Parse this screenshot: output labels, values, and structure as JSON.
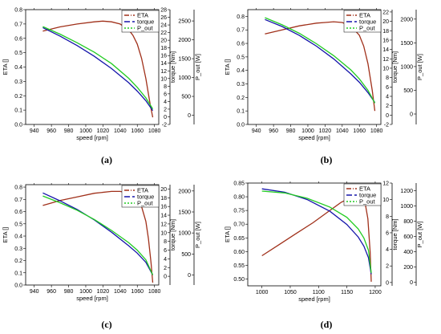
{
  "series_style": {
    "ETA": {
      "color": "#a0301a",
      "dash": "6,2,1,2"
    },
    "torque": {
      "color": "#1515aa",
      "dash": "7,3"
    },
    "P_out": {
      "color": "#22cc22",
      "dash": "2,2"
    }
  },
  "chart_data": [
    {
      "type": "line",
      "caption": "(a)",
      "xlabel": "speed [rpm]",
      "ylabel_left": "ETA []",
      "ylabel_torque": "torque [Nm]",
      "ylabel_power": "P_out [W]",
      "xlim": [
        930,
        1085
      ],
      "xticks": [
        940,
        960,
        980,
        1000,
        1020,
        1040,
        1060,
        1080
      ],
      "eta_lim": [
        0.0,
        0.8
      ],
      "eta_ticks": [
        "0.0",
        "0.1",
        "0.2",
        "0.3",
        "0.4",
        "0.5",
        "0.6",
        "0.7",
        "0.8"
      ],
      "torque_lim": [
        -2,
        28
      ],
      "torque_ticks": [
        -2,
        0,
        2,
        4,
        6,
        8,
        10,
        12,
        14,
        16,
        18,
        20,
        22,
        24,
        26,
        28
      ],
      "power_lim": [
        -244,
        2800
      ],
      "power_ticks": [
        0,
        500,
        1000,
        1500,
        2000,
        2500
      ],
      "legend": [
        "ETA",
        "torque",
        "P_out"
      ],
      "series": [
        {
          "name": "ETA",
          "axis": "eta",
          "x": [
            950,
            970,
            990,
            1010,
            1020,
            1030,
            1040,
            1050,
            1055,
            1060,
            1065,
            1070,
            1075,
            1078
          ],
          "y": [
            0.65,
            0.68,
            0.7,
            0.715,
            0.72,
            0.715,
            0.7,
            0.66,
            0.62,
            0.56,
            0.46,
            0.32,
            0.14,
            0.05
          ]
        },
        {
          "name": "torque",
          "axis": "torque",
          "x": [
            950,
            970,
            990,
            1010,
            1030,
            1050,
            1060,
            1070,
            1078
          ],
          "y": [
            23.3,
            21.1,
            18.6,
            15.8,
            12.6,
            8.9,
            6.7,
            4.2,
            1.6
          ]
        },
        {
          "name": "P_out",
          "axis": "power",
          "x": [
            950,
            970,
            990,
            1010,
            1030,
            1050,
            1060,
            1070,
            1078
          ],
          "y": [
            2350,
            2150,
            1920,
            1670,
            1370,
            980,
            740,
            460,
            170
          ]
        }
      ]
    },
    {
      "type": "line",
      "caption": "(b)",
      "xlabel": "speed [rpm]",
      "ylabel_left": "ETA []",
      "ylabel_torque": "torque [Nm]",
      "ylabel_power": "P_out [W]",
      "xlim": [
        930,
        1085
      ],
      "xticks": [
        940,
        960,
        980,
        1000,
        1020,
        1040,
        1060,
        1080
      ],
      "eta_lim": [
        0.0,
        0.85
      ],
      "eta_ticks": [
        "0.0",
        "0.1",
        "0.2",
        "0.3",
        "0.4",
        "0.5",
        "0.6",
        "0.7",
        "0.8"
      ],
      "torque_lim": [
        -2,
        22.5
      ],
      "torque_ticks": [
        -2,
        0,
        2,
        4,
        6,
        8,
        10,
        12,
        14,
        16,
        18,
        20,
        22
      ],
      "power_lim": [
        -220,
        2200
      ],
      "power_ticks": [
        0,
        500,
        1000,
        1500,
        2000
      ],
      "legend": [
        "ETA",
        "torque",
        "P_out"
      ],
      "series": [
        {
          "name": "ETA",
          "axis": "eta",
          "x": [
            950,
            970,
            990,
            1010,
            1020,
            1030,
            1040,
            1050,
            1060,
            1065,
            1070,
            1075,
            1078
          ],
          "y": [
            0.67,
            0.7,
            0.73,
            0.75,
            0.755,
            0.76,
            0.755,
            0.73,
            0.66,
            0.58,
            0.45,
            0.25,
            0.1
          ]
        },
        {
          "name": "torque",
          "axis": "torque",
          "x": [
            950,
            970,
            990,
            1010,
            1030,
            1050,
            1060,
            1070,
            1078
          ],
          "y": [
            20.4,
            18.9,
            17.0,
            14.7,
            12.0,
            8.8,
            7.0,
            4.8,
            2.7
          ]
        },
        {
          "name": "P_out",
          "axis": "power",
          "x": [
            950,
            970,
            990,
            1010,
            1030,
            1050,
            1060,
            1070,
            1078
          ],
          "y": [
            2030,
            1880,
            1700,
            1480,
            1230,
            930,
            740,
            500,
            230
          ]
        }
      ]
    },
    {
      "type": "line",
      "caption": "(c)",
      "xlabel": "speed [rpm]",
      "ylabel_left": "ETA []",
      "ylabel_torque": "torque [Nm]",
      "ylabel_power": "P_out [W]",
      "xlim": [
        930,
        1085
      ],
      "xticks": [
        940,
        960,
        980,
        1000,
        1020,
        1040,
        1060,
        1080
      ],
      "eta_lim": [
        0.0,
        0.82
      ],
      "eta_ticks": [
        "0.0",
        "0.1",
        "0.2",
        "0.3",
        "0.4",
        "0.5",
        "0.6",
        "0.7",
        "0.8"
      ],
      "torque_lim": [
        -2,
        21
      ],
      "torque_ticks": [
        0,
        2,
        4,
        6,
        8,
        10,
        12,
        14,
        16,
        18,
        20
      ],
      "power_lim": [
        -240,
        2150
      ],
      "power_ticks": [
        0,
        500,
        1000,
        1500,
        2000
      ],
      "legend": [
        "ETA",
        "torque",
        "P_out"
      ],
      "series": [
        {
          "name": "ETA",
          "axis": "eta",
          "x": [
            950,
            970,
            990,
            1010,
            1030,
            1040,
            1050,
            1060,
            1065,
            1070,
            1073,
            1076,
            1078
          ],
          "y": [
            0.65,
            0.69,
            0.72,
            0.75,
            0.765,
            0.765,
            0.75,
            0.7,
            0.64,
            0.52,
            0.38,
            0.18,
            0.02
          ]
        },
        {
          "name": "torque",
          "axis": "torque",
          "x": [
            950,
            970,
            990,
            1010,
            1030,
            1050,
            1060,
            1070,
            1078
          ],
          "y": [
            19.1,
            17.3,
            15.3,
            12.9,
            10.1,
            7.0,
            5.3,
            3.2,
            0.3
          ]
        },
        {
          "name": "P_out",
          "axis": "power",
          "x": [
            950,
            970,
            990,
            1010,
            1030,
            1050,
            1060,
            1070,
            1078
          ],
          "y": [
            1880,
            1720,
            1540,
            1320,
            1060,
            770,
            590,
            360,
            0
          ]
        }
      ]
    },
    {
      "type": "line",
      "caption": "(d)",
      "xlabel": "speed [rpm]",
      "ylabel_left": "ETA []",
      "ylabel_torque": "torque [Nm]",
      "ylabel_power": "P_out [W]",
      "xlim": [
        975,
        1210
      ],
      "xticks": [
        1000,
        1050,
        1100,
        1150,
        1200
      ],
      "eta_lim": [
        0.475,
        0.85
      ],
      "eta_ticks": [
        "0.50",
        "0.55",
        "0.60",
        "0.65",
        "0.70",
        "0.75",
        "0.80",
        "0.85"
      ],
      "torque_lim": [
        -0.4,
        12
      ],
      "torque_ticks": [
        0,
        2,
        4,
        6,
        8,
        10,
        12
      ],
      "power_lim": [
        -48,
        1300
      ],
      "power_ticks": [
        0,
        200,
        400,
        600,
        800,
        1000,
        1200
      ],
      "legend": [
        "ETA",
        "torque",
        "P_out"
      ],
      "series": [
        {
          "name": "ETA",
          "axis": "eta",
          "x": [
            1000,
            1030,
            1060,
            1090,
            1120,
            1140,
            1155,
            1165,
            1175,
            1182,
            1187,
            1191,
            1193
          ],
          "y": [
            0.585,
            0.625,
            0.665,
            0.705,
            0.75,
            0.78,
            0.795,
            0.805,
            0.8,
            0.78,
            0.72,
            0.6,
            0.49
          ]
        },
        {
          "name": "torque",
          "axis": "torque",
          "x": [
            1000,
            1040,
            1080,
            1120,
            1150,
            1170,
            1180,
            1188,
            1193
          ],
          "y": [
            11.3,
            10.9,
            10.0,
            8.6,
            7.0,
            5.5,
            4.4,
            3.0,
            1.0
          ]
        },
        {
          "name": "P_out",
          "axis": "power",
          "x": [
            1000,
            1040,
            1080,
            1120,
            1150,
            1170,
            1180,
            1188,
            1193
          ],
          "y": [
            1195,
            1170,
            1100,
            985,
            850,
            700,
            580,
            420,
            120
          ]
        }
      ]
    }
  ]
}
